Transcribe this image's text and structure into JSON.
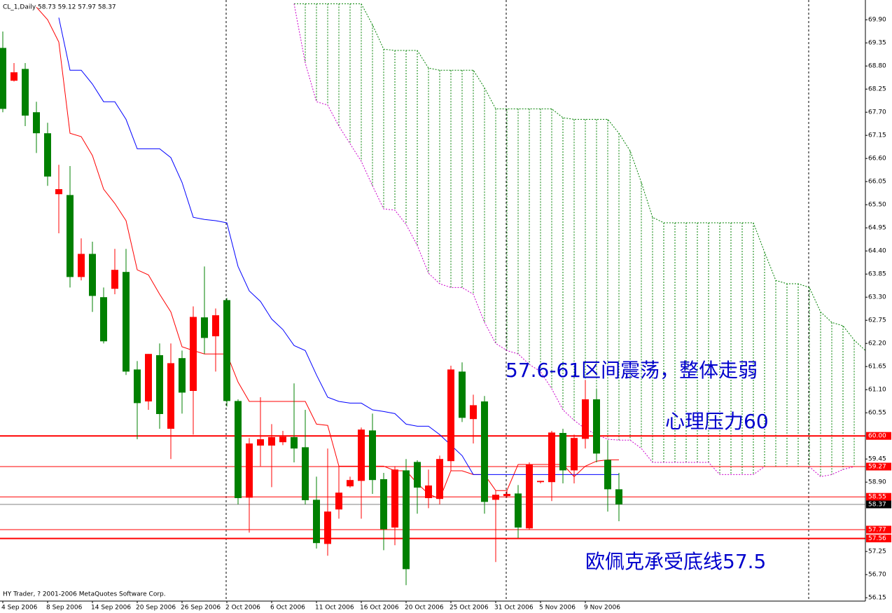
{
  "header": "CL_1,Daily  58.73 59.12 57.97 58.37",
  "copyright": "HY Trader, ? 2001-2006 MetaQuotes Software Corp.",
  "chart_data": {
    "type": "candlestick",
    "up_color": "#ff0000",
    "down_color": "#008000",
    "categories": [
      "4 Sep 2006",
      null,
      null,
      null,
      "8 Sep 2006",
      null,
      null,
      null,
      "14 Sep 2006",
      null,
      null,
      null,
      "20 Sep 2006",
      null,
      null,
      null,
      "26 Sep 2006",
      null,
      null,
      null,
      "2 Oct 2006",
      null,
      null,
      null,
      "6 Oct 2006",
      null,
      null,
      null,
      "11 Oct 2006",
      null,
      null,
      null,
      "16 Oct 2006",
      null,
      null,
      null,
      "20 Oct 2006",
      null,
      null,
      null,
      "25 Oct 2006",
      null,
      null,
      null,
      "31 Oct 2006",
      null,
      null,
      null,
      "5 Nov 2006",
      null,
      null,
      null,
      "9 Nov 2006",
      null,
      null,
      null,
      null,
      null,
      null,
      null,
      null,
      null,
      null,
      null,
      null,
      null,
      null,
      null,
      null,
      null,
      null,
      null,
      null,
      null,
      null,
      null,
      null,
      null
    ],
    "open": [
      69.23,
      68.45,
      68.73,
      67.7,
      67.2,
      65.75,
      65.73,
      63.78,
      64.33,
      63.3,
      63.5,
      63.9,
      61.58,
      60.82,
      61.92,
      60.17,
      61.85,
      61.07,
      62.82,
      62.37,
      63.23,
      60.83,
      58.53,
      59.77,
      59.77,
      59.85,
      59.97,
      59.73,
      58.48,
      57.43,
      58.25,
      58.8,
      58.93,
      60.13,
      58.97,
      57.82,
      59.18,
      59.38,
      58.52,
      58.5,
      59.4,
      61.53,
      60.4,
      60.82,
      58.48,
      58.57,
      58.63,
      57.8,
      58.9,
      58.9,
      60.07,
      59.18,
      59.93,
      60.87,
      59.43,
      58.73,
      null,
      null,
      null,
      null,
      null,
      null,
      null,
      null,
      null,
      null,
      null,
      null,
      null,
      null,
      null,
      null,
      null,
      null,
      null,
      null,
      null,
      null
    ],
    "high": [
      69.62,
      68.87,
      68.87,
      67.95,
      67.45,
      66.45,
      66.42,
      64.7,
      64.62,
      63.53,
      64.45,
      64.45,
      61.78,
      61.95,
      62.2,
      62.2,
      62.03,
      63.08,
      64.03,
      63.03,
      63.28,
      60.87,
      59.95,
      60.92,
      60.28,
      60.12,
      61.25,
      60.62,
      59.03,
      59.7,
      59.28,
      59.03,
      60.2,
      60.53,
      59.12,
      59.28,
      59.45,
      59.42,
      59.2,
      59.53,
      61.67,
      61.75,
      60.98,
      60.95,
      58.7,
      58.7,
      58.83,
      59.37,
      58.93,
      60.12,
      60.17,
      60.03,
      61.33,
      61.12,
      59.9,
      59.12,
      null,
      null,
      null,
      null,
      null,
      null,
      null,
      null,
      null,
      null,
      null,
      null,
      null,
      null,
      null,
      null,
      null,
      null,
      null,
      null,
      null,
      null
    ],
    "low": [
      67.7,
      68.43,
      67.37,
      66.73,
      65.95,
      64.82,
      63.53,
      63.7,
      62.95,
      62.2,
      63.37,
      61.45,
      59.92,
      60.62,
      60.17,
      59.45,
      60.53,
      60.03,
      61.95,
      61.53,
      60.7,
      58.37,
      57.7,
      59.28,
      58.78,
      59.78,
      59.37,
      58.37,
      57.32,
      57.15,
      58.03,
      58.77,
      58.03,
      58.62,
      57.28,
      57.4,
      56.45,
      58.15,
      58.28,
      58.37,
      59.17,
      60.33,
      59.82,
      58.15,
      57.0,
      58.53,
      57.57,
      57.77,
      58.87,
      58.45,
      58.87,
      58.87,
      59.7,
      59.37,
      58.2,
      57.97,
      null,
      null,
      null,
      null,
      null,
      null,
      null,
      null,
      null,
      null,
      null,
      null,
      null,
      null,
      null,
      null,
      null,
      null,
      null,
      null,
      null,
      null
    ],
    "close": [
      67.78,
      68.65,
      67.62,
      67.2,
      66.17,
      65.87,
      63.78,
      64.33,
      63.33,
      62.25,
      63.95,
      61.53,
      60.78,
      61.95,
      60.52,
      61.73,
      61.03,
      62.83,
      62.33,
      62.87,
      60.83,
      58.52,
      59.82,
      59.92,
      59.97,
      59.98,
      59.7,
      58.47,
      57.45,
      58.2,
      58.65,
      58.95,
      60.15,
      58.95,
      57.78,
      59.2,
      56.83,
      58.77,
      58.82,
      59.45,
      61.58,
      60.43,
      60.73,
      58.43,
      58.6,
      58.62,
      57.82,
      59.32,
      58.93,
      60.08,
      59.18,
      59.95,
      60.87,
      59.58,
      58.73,
      58.37,
      null,
      null,
      null,
      null,
      null,
      null,
      null,
      null,
      null,
      null,
      null,
      null,
      null,
      null,
      null,
      null,
      null,
      null,
      null,
      null,
      null,
      null
    ],
    "lines": [
      {
        "color": "#ff0000",
        "values": [
          null,
          null,
          null,
          70.2,
          69.9,
          69.37,
          67.2,
          67.12,
          66.67,
          65.87,
          65.53,
          65.12,
          63.95,
          63.83,
          63.37,
          62.95,
          62.12,
          62.03,
          61.95,
          61.95,
          61.95,
          61.28,
          60.82,
          60.82,
          60.82,
          60.82,
          60.82,
          60.82,
          60.28,
          60.25,
          59.28,
          59.28,
          59.28,
          59.28,
          59.28,
          59.17,
          59.17,
          58.87,
          58.62,
          58.5,
          59.17,
          59.17,
          59.08,
          59.08,
          58.7,
          58.7,
          59.32,
          59.32,
          59.32,
          59.32,
          59.32,
          59.03,
          59.28,
          59.4,
          59.43,
          59.43,
          null,
          null,
          null,
          null,
          null,
          null,
          null,
          null,
          null,
          null,
          null,
          null,
          null,
          null,
          null,
          null,
          null,
          null,
          null,
          null,
          null,
          null
        ]
      },
      {
        "color": "#0000ff",
        "values": [
          null,
          null,
          null,
          null,
          null,
          69.95,
          68.7,
          68.7,
          68.37,
          67.95,
          67.95,
          67.53,
          66.83,
          66.83,
          66.83,
          66.62,
          66.03,
          65.2,
          65.15,
          65.12,
          65.07,
          64.03,
          63.45,
          63.2,
          62.78,
          62.53,
          62.15,
          62.03,
          61.45,
          60.92,
          60.82,
          60.78,
          60.78,
          60.62,
          60.58,
          60.53,
          60.28,
          60.23,
          60.23,
          60.03,
          59.78,
          59.53,
          59.08,
          59.08,
          59.08,
          59.08,
          59.08,
          59.08,
          59.08,
          59.08,
          59.08,
          59.08,
          59.08,
          59.08,
          59.08,
          59.08,
          null,
          null,
          null,
          null,
          null,
          null,
          null,
          null,
          null,
          null,
          null,
          null,
          null,
          null,
          null,
          null,
          null,
          null,
          null,
          null,
          null,
          null
        ]
      }
    ],
    "cloud": {
      "hatch_color": "#008000",
      "span_a": {
        "color": "#008000",
        "values": [
          null,
          null,
          null,
          null,
          null,
          null,
          null,
          null,
          null,
          null,
          null,
          null,
          null,
          null,
          null,
          null,
          null,
          null,
          null,
          null,
          null,
          null,
          null,
          null,
          null,
          null,
          70.28,
          70.28,
          70.28,
          70.28,
          70.28,
          70.28,
          70.28,
          69.78,
          69.2,
          69.17,
          69.17,
          69.17,
          68.75,
          68.7,
          68.7,
          68.7,
          68.7,
          68.28,
          67.78,
          67.78,
          67.78,
          67.78,
          67.78,
          67.78,
          67.57,
          67.53,
          67.53,
          67.53,
          67.53,
          67.2,
          66.78,
          66.03,
          65.2,
          65.07,
          65.07,
          65.07,
          65.07,
          65.07,
          65.07,
          65.07,
          65.07,
          65.07,
          64.37,
          63.7,
          63.62,
          63.62,
          63.53,
          62.95,
          62.7,
          62.62,
          62.28,
          62.03
        ]
      },
      "span_b": {
        "color": "#cc00cc",
        "values": [
          null,
          null,
          null,
          null,
          null,
          null,
          null,
          null,
          null,
          null,
          null,
          null,
          null,
          null,
          null,
          null,
          null,
          null,
          null,
          null,
          null,
          null,
          null,
          null,
          null,
          null,
          70.28,
          68.87,
          67.95,
          67.87,
          67.37,
          66.95,
          66.53,
          65.95,
          65.4,
          65.37,
          65.03,
          64.53,
          63.87,
          63.62,
          63.53,
          63.53,
          63.37,
          62.7,
          62.2,
          62.03,
          61.95,
          61.7,
          61.53,
          61.12,
          60.62,
          60.37,
          60.17,
          60.03,
          59.92,
          59.9,
          59.9,
          59.7,
          59.37,
          59.37,
          59.37,
          59.37,
          59.37,
          59.37,
          59.08,
          59.08,
          59.08,
          59.08,
          59.27,
          59.27,
          59.27,
          59.27,
          59.27,
          59.03,
          59.08,
          59.2,
          59.27,
          59.27
        ]
      }
    },
    "levels": [
      {
        "value": 60,
        "label": "60.00",
        "color": "#ff0000",
        "line_width": 2
      },
      {
        "value": 59.27,
        "label": "59.27",
        "color": "#ff0000",
        "line_width": 1
      },
      {
        "value": 58.55,
        "label": "58.55",
        "color": "#ff0000",
        "line_width": 1
      },
      {
        "value": 57.77,
        "label": "57.77",
        "color": "#ff0000",
        "line_width": 1
      },
      {
        "value": 57.56,
        "label": "57.56",
        "color": "#ff0000",
        "line_width": 2
      }
    ],
    "current_price": {
      "value": 58.37,
      "label": "58.37",
      "color": "#808080"
    },
    "ylim": [
      56.07,
      70.37
    ],
    "yticks": [
      {
        "value": 69.9,
        "label": "69.90"
      },
      69.35,
      {
        "value": 68.8,
        "label": "68.80"
      },
      68.25,
      {
        "value": 67.7,
        "label": "67.70"
      },
      67.15,
      {
        "value": 66.6,
        "label": "66.60"
      },
      66.05,
      {
        "value": 65.5,
        "label": "65.50"
      },
      64.95,
      {
        "value": 64.4,
        "label": "64.40"
      },
      63.85,
      {
        "value": 63.3,
        "label": "63.30"
      },
      62.75,
      {
        "value": 62.2,
        "label": "62.20"
      },
      61.65,
      {
        "value": 61.1,
        "label": "61.10"
      },
      60.55,
      59.45,
      {
        "value": 58.9,
        "label": "58.90"
      },
      57.25,
      {
        "value": 56.7,
        "label": "56.70"
      },
      56.15
    ],
    "annotations": [
      "57.6-61区间震荡，整体走弱",
      "心理压力60",
      "欧佩克承受底线57.5"
    ]
  }
}
